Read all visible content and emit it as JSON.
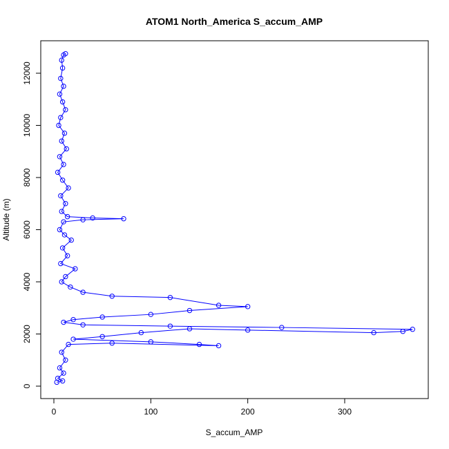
{
  "chart_data": {
    "type": "scatter",
    "title": "ATOM1 North_America S_accum_AMP",
    "xlabel": "S_accum_AMP",
    "ylabel": "Altitude (m)",
    "xlim": [
      0,
      375
    ],
    "ylim": [
      0,
      12900
    ],
    "x_ticks": [
      0,
      100,
      200,
      300
    ],
    "y_ticks": [
      0,
      2000,
      4000,
      6000,
      8000,
      10000,
      12000
    ],
    "grid": false,
    "legend": "none",
    "connected": true,
    "series": [
      {
        "color": "#0000ff",
        "marker": "open-circle",
        "points": [
          [
            12,
            12750
          ],
          [
            10,
            12700
          ],
          [
            8,
            12500
          ],
          [
            9,
            12200
          ],
          [
            7,
            11800
          ],
          [
            10,
            11500
          ],
          [
            6,
            11200
          ],
          [
            9,
            10900
          ],
          [
            12,
            10600
          ],
          [
            7,
            10300
          ],
          [
            5,
            10000
          ],
          [
            11,
            9700
          ],
          [
            8,
            9400
          ],
          [
            13,
            9100
          ],
          [
            6,
            8800
          ],
          [
            10,
            8500
          ],
          [
            4,
            8200
          ],
          [
            9,
            7900
          ],
          [
            15,
            7600
          ],
          [
            7,
            7300
          ],
          [
            12,
            7000
          ],
          [
            8,
            6700
          ],
          [
            14,
            6500
          ],
          [
            40,
            6450
          ],
          [
            72,
            6420
          ],
          [
            30,
            6380
          ],
          [
            10,
            6300
          ],
          [
            6,
            6000
          ],
          [
            11,
            5800
          ],
          [
            18,
            5600
          ],
          [
            9,
            5300
          ],
          [
            14,
            5000
          ],
          [
            7,
            4700
          ],
          [
            22,
            4500
          ],
          [
            12,
            4200
          ],
          [
            8,
            4000
          ],
          [
            17,
            3800
          ],
          [
            30,
            3600
          ],
          [
            60,
            3450
          ],
          [
            120,
            3400
          ],
          [
            170,
            3100
          ],
          [
            200,
            3050
          ],
          [
            140,
            2900
          ],
          [
            100,
            2750
          ],
          [
            50,
            2650
          ],
          [
            20,
            2550
          ],
          [
            10,
            2450
          ],
          [
            30,
            2350
          ],
          [
            120,
            2300
          ],
          [
            235,
            2250
          ],
          [
            370,
            2180
          ],
          [
            360,
            2100
          ],
          [
            330,
            2050
          ],
          [
            200,
            2150
          ],
          [
            140,
            2200
          ],
          [
            90,
            2050
          ],
          [
            50,
            1900
          ],
          [
            20,
            1800
          ],
          [
            100,
            1700
          ],
          [
            150,
            1600
          ],
          [
            170,
            1550
          ],
          [
            60,
            1650
          ],
          [
            15,
            1600
          ],
          [
            8,
            1300
          ],
          [
            12,
            1000
          ],
          [
            6,
            700
          ],
          [
            10,
            500
          ],
          [
            4,
            300
          ],
          [
            9,
            200
          ],
          [
            3,
            150
          ]
        ]
      }
    ]
  }
}
